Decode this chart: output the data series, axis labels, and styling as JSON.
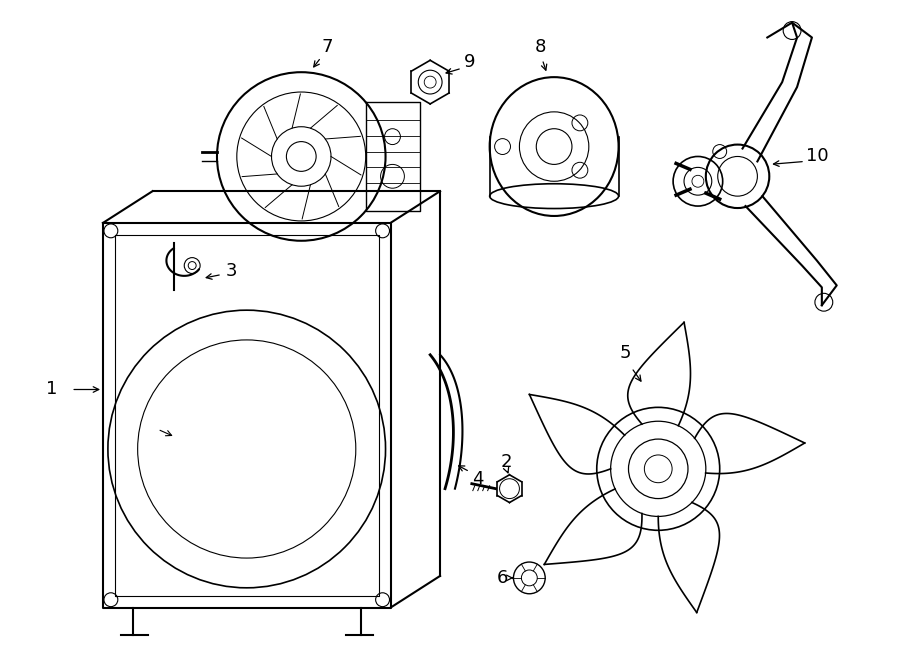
{
  "background_color": "#ffffff",
  "line_color": "#000000",
  "line_width": 1.2,
  "fig_width": 9.0,
  "fig_height": 6.61
}
